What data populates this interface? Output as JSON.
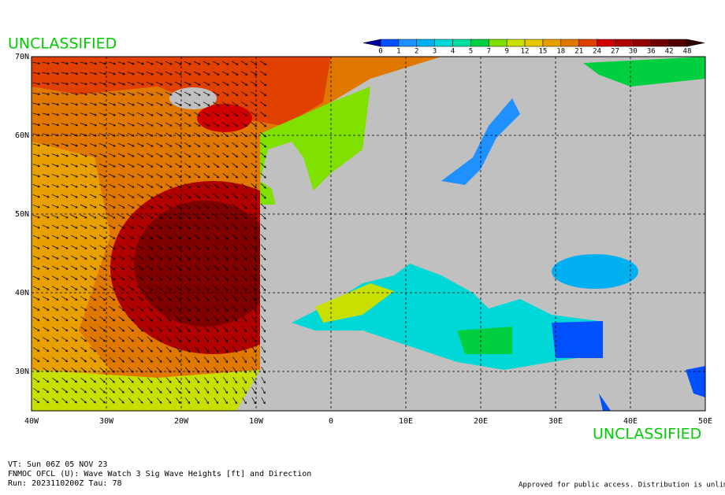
{
  "header": {
    "classification": "UNCLASSIFIED"
  },
  "legend": {
    "levels": [
      "0",
      "1",
      "2",
      "3",
      "4",
      "5",
      "7",
      "9",
      "12",
      "15",
      "18",
      "21",
      "24",
      "27",
      "30",
      "36",
      "42",
      "48"
    ],
    "colors": [
      "#0050ff",
      "#1e90ff",
      "#00b0f0",
      "#00d8d8",
      "#00e0a0",
      "#00d040",
      "#80e000",
      "#c8e000",
      "#e8c800",
      "#e8a000",
      "#e07800",
      "#e04000",
      "#d00000",
      "#b00000",
      "#900000",
      "#700000",
      "#500000"
    ],
    "low_color": "#0000a0",
    "high_color": "#300000"
  },
  "map": {
    "lat_labels": [
      "70N",
      "60N",
      "50N",
      "40N",
      "30N"
    ],
    "lon_labels": [
      "40W",
      "30W",
      "20W",
      "10W",
      "0",
      "10E",
      "20E",
      "30E",
      "40E",
      "50E"
    ]
  },
  "footer": {
    "classification": "UNCLASSIFIED",
    "valid_time": "VT: Sun 06Z 05 NOV 23",
    "product": "FNMOC OFCL (U): Wave Watch 3 Sig Wave Heights [ft] and Direction",
    "run": "Run: 2023110200Z Tau: 78",
    "release": "Approved for public access. Distribution is unlimited."
  }
}
